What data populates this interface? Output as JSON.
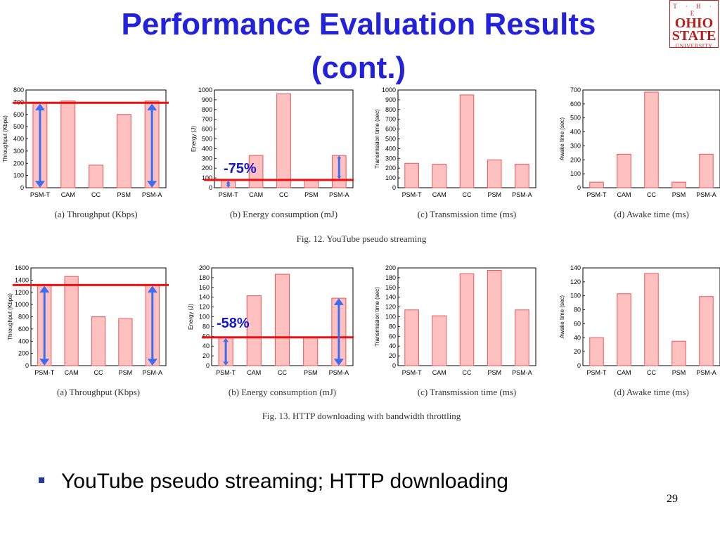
{
  "slide": {
    "title_line1": "Performance Evaluation Results",
    "title_line2": "(cont.)",
    "bullet": "YouTube pseudo streaming; HTTP downloading",
    "page_number": "29"
  },
  "logo": {
    "the": "T · H · E",
    "line1": "OHIO",
    "line2": "STATE",
    "line3": "UNIVERSITY"
  },
  "figures": [
    {
      "caption": "Fig. 12.    YouTube pseudo streaming",
      "annotation": "-75%"
    },
    {
      "caption": "Fig. 13.    HTTP downloading with bandwidth throttling",
      "annotation": "-58%"
    }
  ],
  "colors": {
    "bar_fill": "#ffc0c0",
    "bar_stroke": "#ee5555",
    "ref_line": "#ee1111",
    "arrow": "#3b6ef0",
    "title": "#2222dd"
  },
  "chart_data": [
    {
      "type": "bar",
      "panel": "(a) Throughput (Kbps)",
      "ylabel": "Throughput (Kbps)",
      "categories": [
        "PSM-T",
        "CAM",
        "CC",
        "PSM",
        "PSM-A"
      ],
      "values": [
        695,
        710,
        185,
        600,
        710
      ],
      "ylim": [
        0,
        800
      ],
      "yticks": [
        0,
        100,
        200,
        300,
        400,
        500,
        600,
        700,
        800
      ]
    },
    {
      "type": "bar",
      "panel": "(b) Energy consumption (mJ)",
      "ylabel": "Energy (J)",
      "categories": [
        "PSM-T",
        "CAM",
        "CC",
        "PSM",
        "PSM-A"
      ],
      "values": [
        80,
        330,
        960,
        80,
        330
      ],
      "ylim": [
        0,
        1000
      ],
      "yticks": [
        0,
        100,
        200,
        300,
        400,
        500,
        600,
        700,
        800,
        900,
        1000
      ]
    },
    {
      "type": "bar",
      "panel": "(c) Transmission time (ms)",
      "ylabel": "Transmission time (sec)",
      "categories": [
        "PSM-T",
        "CAM",
        "CC",
        "PSM",
        "PSM-A"
      ],
      "values": [
        250,
        240,
        950,
        285,
        240
      ],
      "ylim": [
        0,
        1000
      ],
      "yticks": [
        0,
        100,
        200,
        300,
        400,
        500,
        600,
        700,
        800,
        900,
        1000
      ]
    },
    {
      "type": "bar",
      "panel": "(d) Awake time (ms)",
      "ylabel": "Awake time (sec)",
      "categories": [
        "PSM-T",
        "CAM",
        "CC",
        "PSM",
        "PSM-A"
      ],
      "values": [
        40,
        240,
        685,
        40,
        240
      ],
      "ylim": [
        0,
        700
      ],
      "yticks": [
        0,
        100,
        200,
        300,
        400,
        500,
        600,
        700
      ]
    },
    {
      "type": "bar",
      "panel": "(a) Throughput (Kbps)",
      "ylabel": "Throughput (Kbps)",
      "categories": [
        "PSM-T",
        "CAM",
        "CC",
        "PSM",
        "PSM-A"
      ],
      "values": [
        1320,
        1460,
        800,
        770,
        1320
      ],
      "ylim": [
        0,
        1600
      ],
      "yticks": [
        0,
        200,
        400,
        600,
        800,
        1000,
        1200,
        1400,
        1600
      ]
    },
    {
      "type": "bar",
      "panel": "(b) Energy consumption (mJ)",
      "ylabel": "Energy (J)",
      "categories": [
        "PSM-T",
        "CAM",
        "CC",
        "PSM",
        "PSM-A"
      ],
      "values": [
        58,
        143,
        187,
        58,
        138
      ],
      "ylim": [
        0,
        200
      ],
      "yticks": [
        0,
        20,
        40,
        60,
        80,
        100,
        120,
        140,
        160,
        180,
        200
      ]
    },
    {
      "type": "bar",
      "panel": "(c) Transmission time (ms)",
      "ylabel": "Transmission time (sec)",
      "categories": [
        "PSM-T",
        "CAM",
        "CC",
        "PSM",
        "PSM-A"
      ],
      "values": [
        114,
        102,
        188,
        195,
        114
      ],
      "ylim": [
        0,
        200
      ],
      "yticks": [
        0,
        20,
        40,
        60,
        80,
        100,
        120,
        140,
        160,
        180,
        200
      ]
    },
    {
      "type": "bar",
      "panel": "(d) Awake time (ms)",
      "ylabel": "Awake time (sec)",
      "categories": [
        "PSM-T",
        "CAM",
        "CC",
        "PSM",
        "PSM-A"
      ],
      "values": [
        40,
        103,
        132,
        35,
        99
      ],
      "ylim": [
        0,
        140
      ],
      "yticks": [
        0,
        20,
        40,
        60,
        80,
        100,
        120,
        140
      ]
    }
  ]
}
